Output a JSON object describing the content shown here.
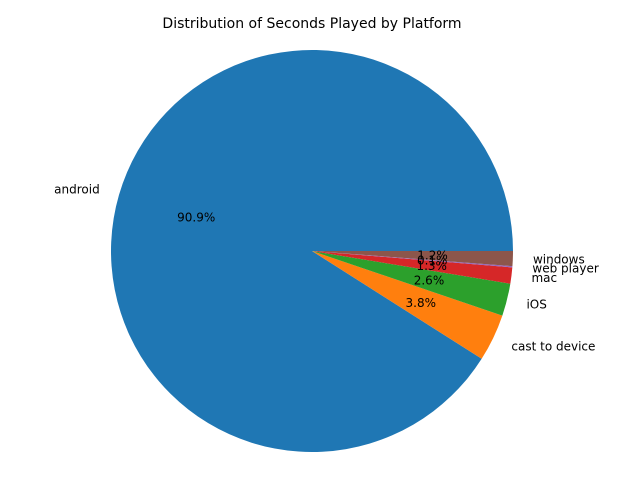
{
  "chart_data": {
    "type": "pie",
    "title": "Distribution of Seconds Played by Platform",
    "start_angle_deg": 0,
    "direction": "counterclockwise",
    "slices": [
      {
        "label": "android",
        "value": 90.9,
        "pct_label": "90.9%",
        "color": "#1f77b4"
      },
      {
        "label": "cast to device",
        "value": 3.8,
        "pct_label": "3.8%",
        "color": "#ff7f0e"
      },
      {
        "label": "iOS",
        "value": 2.6,
        "pct_label": "2.6%",
        "color": "#2ca02c"
      },
      {
        "label": "mac",
        "value": 1.3,
        "pct_label": "1.3%",
        "color": "#d62728"
      },
      {
        "label": "web player",
        "value": 0.1,
        "pct_label": "0.1%",
        "color": "#9467bd"
      },
      {
        "label": "windows",
        "value": 1.2,
        "pct_label": "1.2%",
        "color": "#8c564b"
      }
    ]
  }
}
